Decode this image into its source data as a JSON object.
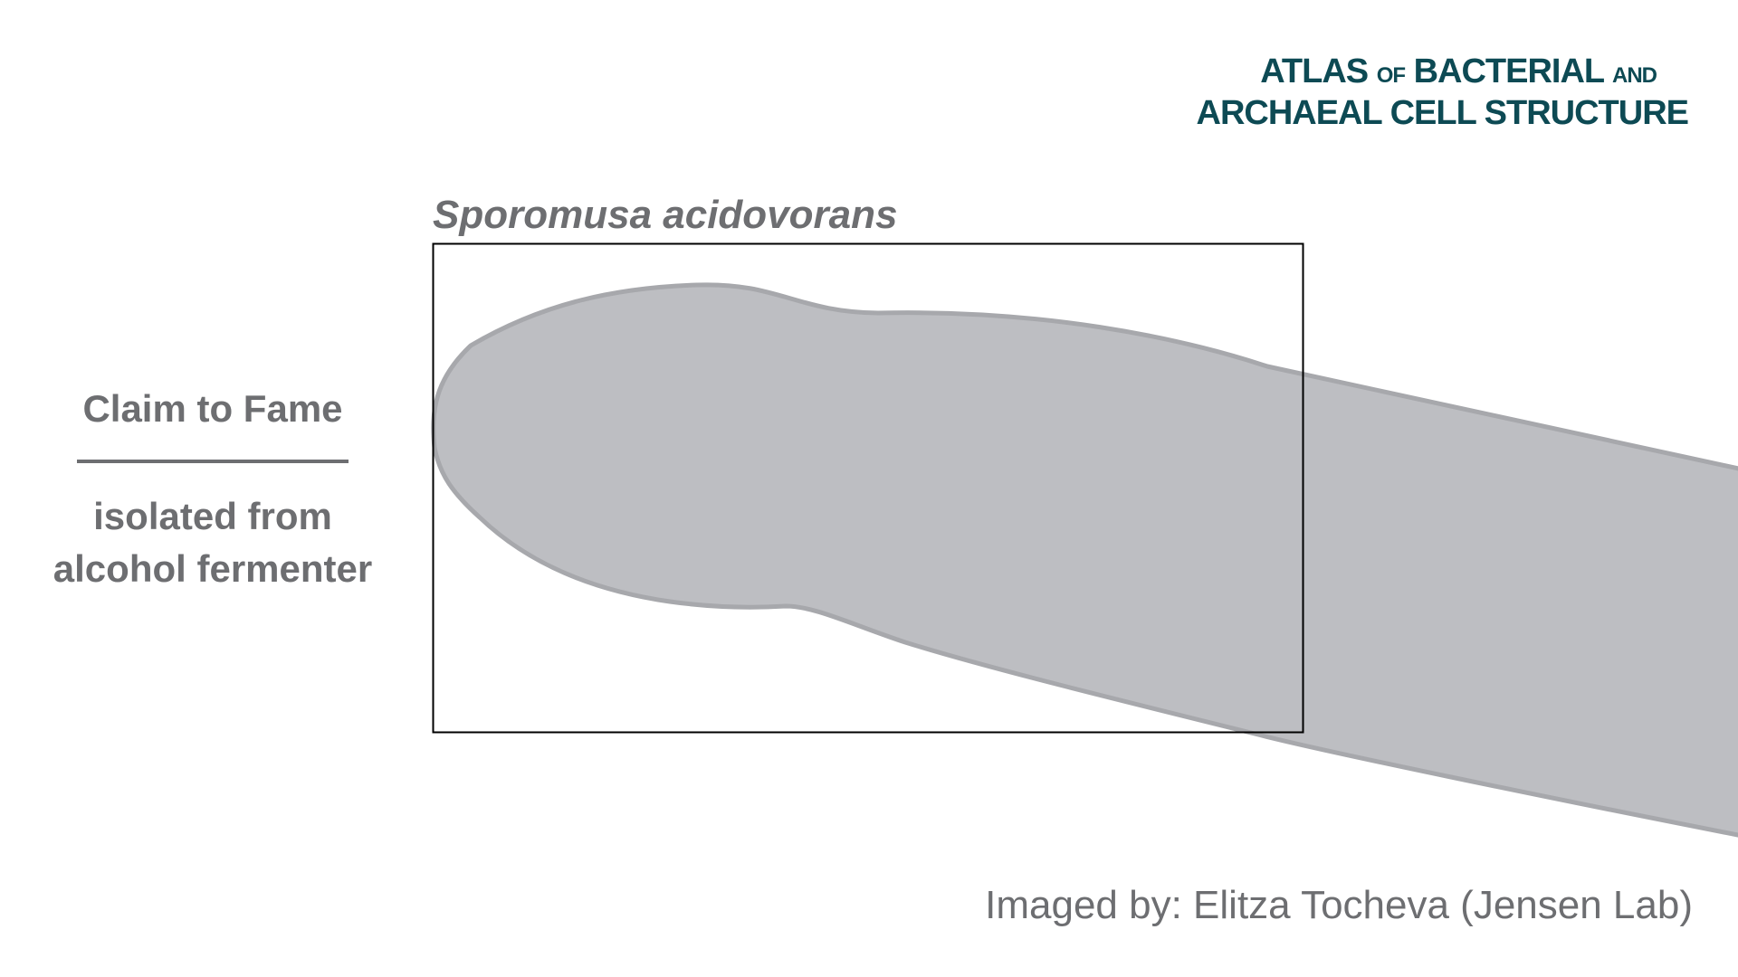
{
  "logo": {
    "line1_a": "ATLAS",
    "line1_of": "OF",
    "line1_b": "BACTERIAL",
    "line1_and": "AND",
    "line2": "ARCHAEAL CELL STRUCTURE"
  },
  "species_name": "Sporomusa acidovorans",
  "claim_to_fame": {
    "heading": "Claim to Fame",
    "line1": "isolated from",
    "line2": "alcohol fermenter"
  },
  "credit": "Imaged by: Elitza Tocheva (Jensen Lab)",
  "colors": {
    "text_gray": "#6d6e71",
    "cell_fill": "#bdbec2",
    "cell_outline": "#a7a8ac",
    "logo_teal": "#0d4a54",
    "frame": "#000000"
  }
}
